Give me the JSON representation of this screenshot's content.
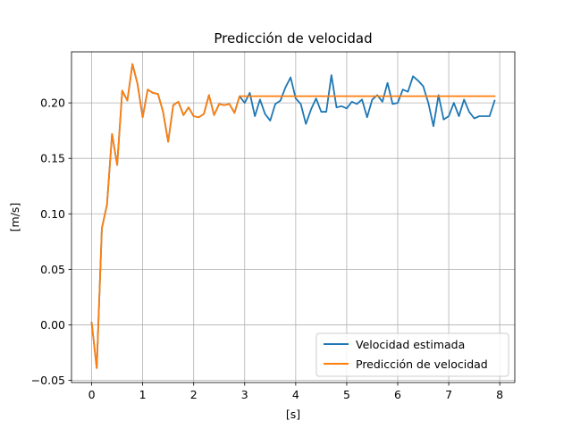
{
  "chart_data": {
    "type": "line",
    "title": "Predicción de velocidad",
    "xlabel": "[s]",
    "ylabel": "[m/s]",
    "xlim": [
      -0.395,
      8.295
    ],
    "ylim": [
      -0.052,
      0.246
    ],
    "x_ticks": [
      "0",
      "1",
      "2",
      "3",
      "4",
      "5",
      "6",
      "7",
      "8"
    ],
    "y_ticks": [
      "−0.05",
      "0.00",
      "0.05",
      "0.10",
      "0.15",
      "0.20"
    ],
    "grid": true,
    "legend_position": "lower-right",
    "x": [
      0.0,
      0.1,
      0.2,
      0.3,
      0.4,
      0.5,
      0.6,
      0.7,
      0.8,
      0.9,
      1.0,
      1.1,
      1.2,
      1.3,
      1.4,
      1.5,
      1.6,
      1.7,
      1.8,
      1.9,
      2.0,
      2.1,
      2.2,
      2.3,
      2.4,
      2.5,
      2.6,
      2.7,
      2.8,
      2.9,
      3.0,
      3.1,
      3.2,
      3.3,
      3.4,
      3.5,
      3.6,
      3.7,
      3.8,
      3.9,
      4.0,
      4.1,
      4.2,
      4.3,
      4.4,
      4.5,
      4.6,
      4.7,
      4.8,
      4.9,
      5.0,
      5.1,
      5.2,
      5.3,
      5.4,
      5.5,
      5.6,
      5.7,
      5.8,
      5.9,
      6.0,
      6.1,
      6.2,
      6.3,
      6.4,
      6.5,
      6.6,
      6.7,
      6.8,
      6.9,
      7.0,
      7.1,
      7.2,
      7.3,
      7.4,
      7.5,
      7.6,
      7.7,
      7.8,
      7.9
    ],
    "series": [
      {
        "name": "Velocidad estimada",
        "color": "#1f77b4",
        "values": [
          0.002,
          -0.039,
          0.087,
          0.108,
          0.172,
          0.144,
          0.211,
          0.202,
          0.235,
          0.217,
          0.187,
          0.212,
          0.209,
          0.208,
          0.192,
          0.165,
          0.198,
          0.201,
          0.189,
          0.196,
          0.188,
          0.187,
          0.19,
          0.207,
          0.189,
          0.199,
          0.198,
          0.199,
          0.191,
          0.206,
          0.2,
          0.209,
          0.188,
          0.203,
          0.19,
          0.184,
          0.199,
          0.202,
          0.214,
          0.223,
          0.204,
          0.199,
          0.181,
          0.194,
          0.204,
          0.192,
          0.192,
          0.225,
          0.196,
          0.197,
          0.195,
          0.201,
          0.199,
          0.203,
          0.187,
          0.203,
          0.207,
          0.201,
          0.218,
          0.199,
          0.2,
          0.212,
          0.21,
          0.224,
          0.22,
          0.215,
          0.2,
          0.179,
          0.207,
          0.185,
          0.188,
          0.2,
          0.188,
          0.203,
          0.192,
          0.186,
          0.188,
          0.188,
          0.188,
          0.202
        ]
      },
      {
        "name": "Predicción de velocidad",
        "color": "#ff7f0e",
        "values": [
          0.002,
          -0.039,
          0.087,
          0.108,
          0.172,
          0.144,
          0.211,
          0.202,
          0.235,
          0.217,
          0.187,
          0.212,
          0.209,
          0.208,
          0.192,
          0.165,
          0.198,
          0.201,
          0.189,
          0.196,
          0.188,
          0.187,
          0.19,
          0.207,
          0.189,
          0.199,
          0.198,
          0.199,
          0.191,
          0.206,
          0.206,
          0.206,
          0.206,
          0.206,
          0.206,
          0.206,
          0.206,
          0.206,
          0.206,
          0.206,
          0.206,
          0.206,
          0.206,
          0.206,
          0.206,
          0.206,
          0.206,
          0.206,
          0.206,
          0.206,
          0.206,
          0.206,
          0.206,
          0.206,
          0.206,
          0.206,
          0.206,
          0.206,
          0.206,
          0.206,
          0.206,
          0.206,
          0.206,
          0.206,
          0.206,
          0.206,
          0.206,
          0.206,
          0.206,
          0.206,
          0.206,
          0.206,
          0.206,
          0.206,
          0.206,
          0.206,
          0.206,
          0.206,
          0.206,
          0.206
        ]
      }
    ]
  }
}
